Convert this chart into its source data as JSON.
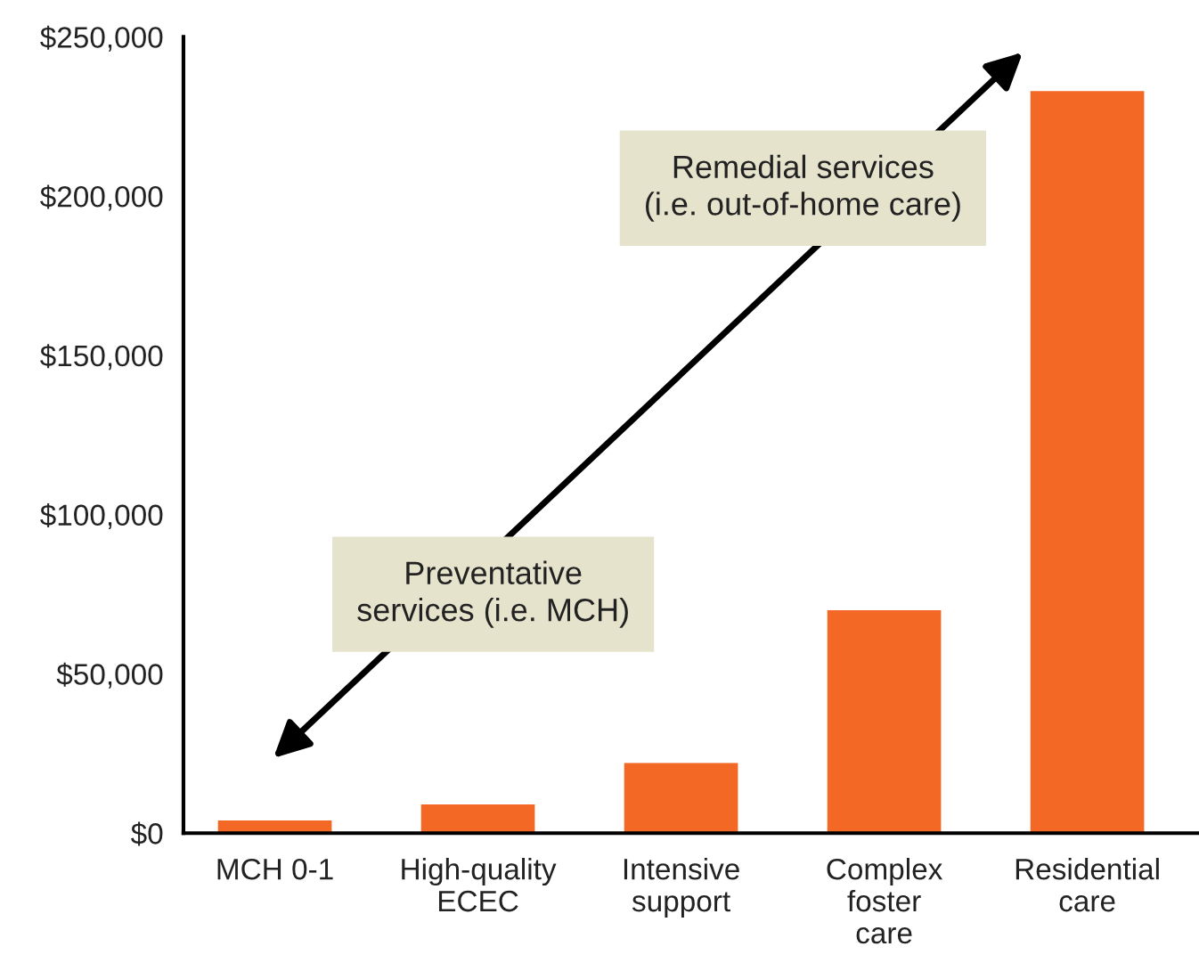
{
  "chart_data": {
    "type": "bar",
    "categories": [
      "MCH 0-1",
      "High-quality\nECEC",
      "Intensive\nsupport",
      "Complex\nfoster\ncare",
      "Residential\ncare"
    ],
    "values": [
      4000,
      9000,
      22000,
      70000,
      233000
    ],
    "color": "#f26824",
    "ylim": [
      0,
      250000
    ],
    "yticks": [
      {
        "value": 0,
        "label": "$0"
      },
      {
        "value": 50000,
        "label": "$50,000"
      },
      {
        "value": 100000,
        "label": "$100,000"
      },
      {
        "value": 150000,
        "label": "$150,000"
      },
      {
        "value": 200000,
        "label": "$200,000"
      },
      {
        "value": 250000,
        "label": "$250,000"
      }
    ],
    "grid": false,
    "legend": false,
    "annotations": [
      "Remedial services\n(i.e. out-of-home care)",
      "Preventative\nservices (i.e. MCH)"
    ]
  }
}
